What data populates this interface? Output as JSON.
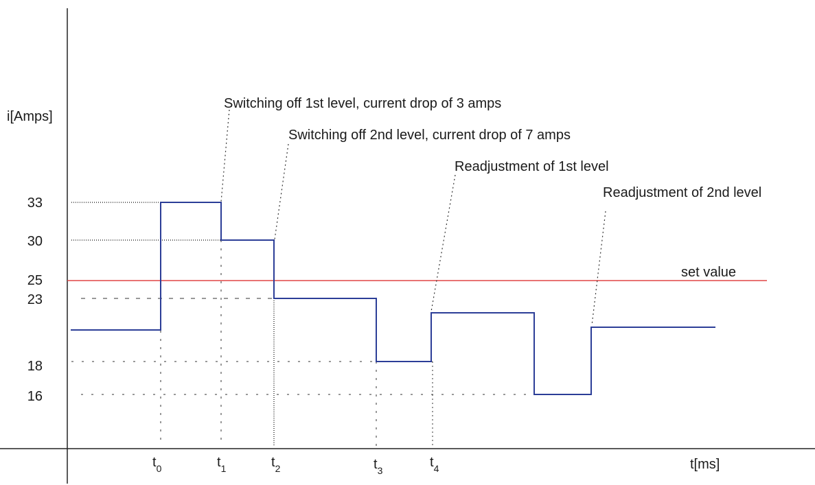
{
  "chart_data": {
    "type": "line",
    "title": "",
    "ylabel": "i[Amps]",
    "xlabel": "t[ms]",
    "y_ticks": [
      "33",
      "30",
      "25",
      "23",
      "18",
      "16"
    ],
    "x_ticks": [
      {
        "base": "t",
        "sub": "0"
      },
      {
        "base": "t",
        "sub": "1"
      },
      {
        "base": "t",
        "sub": "2"
      },
      {
        "base": "t",
        "sub": "3"
      },
      {
        "base": "t",
        "sub": "4"
      }
    ],
    "setpoint": {
      "value": 25,
      "label": "set value",
      "color": "#e04545"
    },
    "series": [
      {
        "color": "#2b3d97",
        "step_points": [
          {
            "x": "start",
            "y": 21
          },
          {
            "x": "t0",
            "y": 33
          },
          {
            "x": "t1",
            "y": 30
          },
          {
            "x": "t2",
            "y": 23
          },
          {
            "x": "t3",
            "y": 18
          },
          {
            "x": "t4",
            "y": 22
          },
          {
            "x": "after t4",
            "y": 16
          },
          {
            "x": "later",
            "y": 21.2
          }
        ]
      }
    ],
    "annotations": [
      "Switching off 1st level, current drop of 3 amps",
      "Switching off 2nd level, current drop of 7 amps",
      "Readjustment of 1st level",
      "Readjustment of 2nd level"
    ],
    "grid": false,
    "legend": "none"
  }
}
